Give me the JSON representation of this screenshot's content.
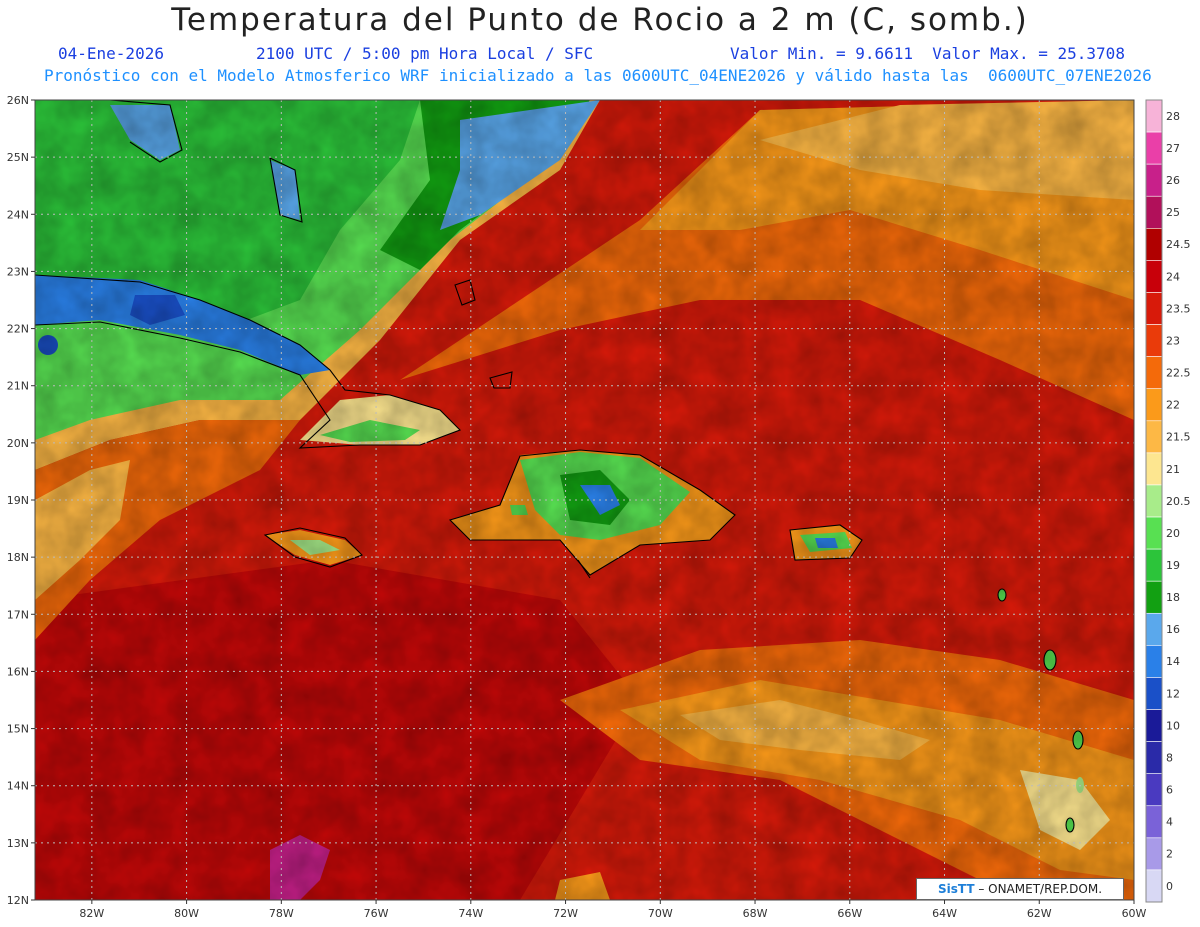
{
  "header": {
    "title": "Temperatura del Punto de Rocio a 2 m (C, somb.)",
    "date": "04-Ene-2026",
    "time": "2100 UTC / 5:00 pm Hora Local / SFC",
    "min_max": "Valor Min. = 9.6611  Valor Max. = 25.3708",
    "model_line": "Pronóstico con el Modelo Atmosferico WRF inicializado a las 0600UTC_04ENE2026 y válido hasta las  0600UTC_07ENE2026"
  },
  "map": {
    "lat_labels": [
      "26N",
      "25N",
      "24N",
      "23N",
      "22N",
      "21N",
      "20N",
      "19N",
      "18N",
      "17N",
      "16N",
      "15N",
      "14N",
      "13N",
      "12N"
    ],
    "lon_labels": [
      "82W",
      "80W",
      "78W",
      "76W",
      "74W",
      "72W",
      "70W",
      "68W",
      "66W",
      "64W",
      "62W",
      "60W"
    ],
    "lat_range": [
      12,
      26
    ],
    "lon_range": [
      -83.2,
      -60
    ],
    "grid": true
  },
  "legend": {
    "levels": [
      "28",
      "27",
      "26",
      "25",
      "24.5",
      "24",
      "23.5",
      "23",
      "22.5",
      "22",
      "21.5",
      "21",
      "20.5",
      "20",
      "19",
      "18",
      "16",
      "14",
      "12",
      "10",
      "8",
      "6",
      "4",
      "2",
      "0"
    ],
    "colors": [
      "#f7b3d8",
      "#ea3fa8",
      "#c8208a",
      "#b1105a",
      "#b00000",
      "#c8000a",
      "#d81a0a",
      "#ea3b0a",
      "#f46a0a",
      "#fb9a1a",
      "#fdb845",
      "#fde690",
      "#a8ec8a",
      "#58e052",
      "#2cc43a",
      "#12a012",
      "#5aa8ec",
      "#2a80e8",
      "#1a50c8",
      "#1a1a98",
      "#2a2aa8",
      "#4a3ac0",
      "#7a62d8",
      "#a89ae8",
      "#d8d8f4"
    ]
  },
  "credit": {
    "brand": "SisTT",
    "text": " – ONAMET/REP.DOM."
  }
}
